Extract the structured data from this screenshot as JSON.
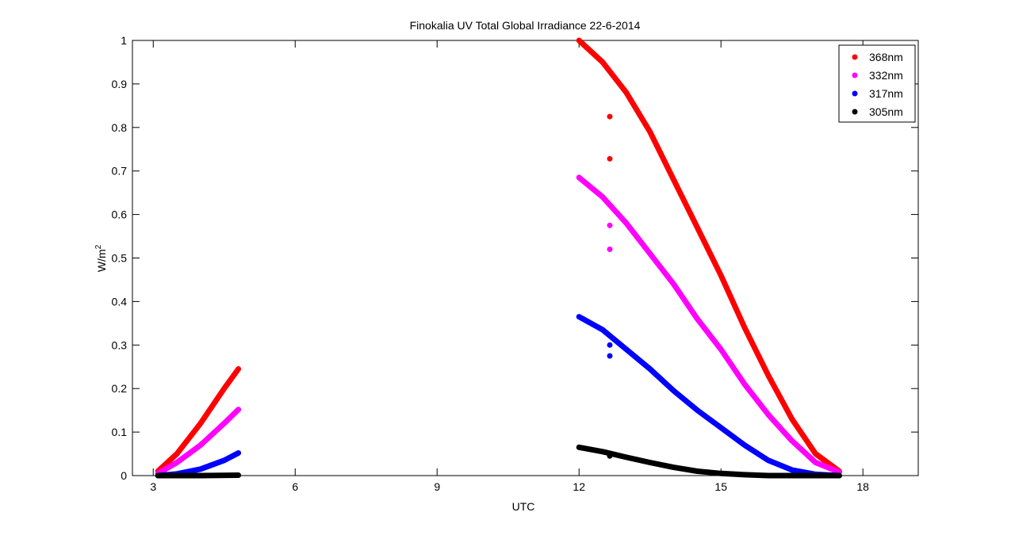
{
  "chart_data": {
    "type": "scatter",
    "title": "Finokalia UV Total Global Irradiance 22-6-2014",
    "xlabel": "UTC",
    "ylabel": "W/m",
    "ylabel_sup": "2",
    "xlim": [
      2.56,
      19.17
    ],
    "ylim": [
      0,
      1
    ],
    "xticks": [
      3,
      6,
      9,
      12,
      15,
      18
    ],
    "xtick_labels": [
      "3",
      "6",
      "9",
      "12",
      "15",
      "18"
    ],
    "yticks": [
      0,
      0.1,
      0.2,
      0.3,
      0.4,
      0.5,
      0.6,
      0.7,
      0.8,
      0.9,
      1
    ],
    "ytick_labels": [
      "0",
      "0.1",
      "0.2",
      "0.3",
      "0.4",
      "0.5",
      "0.6",
      "0.7",
      "0.8",
      "0.9",
      "1"
    ],
    "grid": false,
    "legend_position": "top-right",
    "series": [
      {
        "name": "368nm",
        "color": "#ff0000",
        "segments": [
          [
            [
              3.1,
              0.01
            ],
            [
              3.5,
              0.05
            ],
            [
              4.0,
              0.12
            ],
            [
              4.5,
              0.2
            ],
            [
              4.8,
              0.245
            ]
          ],
          [
            [
              12,
              1.0
            ],
            [
              12.5,
              0.95
            ],
            [
              13,
              0.88
            ],
            [
              13.5,
              0.79
            ],
            [
              14,
              0.68
            ],
            [
              14.5,
              0.57
            ],
            [
              15,
              0.46
            ],
            [
              15.5,
              0.34
            ],
            [
              16,
              0.23
            ],
            [
              16.5,
              0.13
            ],
            [
              17,
              0.05
            ],
            [
              17.5,
              0.01
            ]
          ]
        ],
        "outliers": [
          [
            12.65,
            0.825
          ],
          [
            12.65,
            0.728
          ]
        ]
      },
      {
        "name": "332nm",
        "color": "#ff00ff",
        "segments": [
          [
            [
              3.1,
              0.005
            ],
            [
              3.5,
              0.03
            ],
            [
              4.0,
              0.07
            ],
            [
              4.5,
              0.12
            ],
            [
              4.8,
              0.152
            ]
          ],
          [
            [
              12,
              0.685
            ],
            [
              12.5,
              0.64
            ],
            [
              13,
              0.58
            ],
            [
              13.5,
              0.51
            ],
            [
              14,
              0.44
            ],
            [
              14.5,
              0.36
            ],
            [
              15,
              0.29
            ],
            [
              15.5,
              0.21
            ],
            [
              16,
              0.14
            ],
            [
              16.5,
              0.08
            ],
            [
              17,
              0.03
            ],
            [
              17.5,
              0.008
            ]
          ]
        ],
        "outliers": [
          [
            12.65,
            0.575
          ],
          [
            12.65,
            0.52
          ]
        ]
      },
      {
        "name": "317nm",
        "color": "#0000ff",
        "segments": [
          [
            [
              3.1,
              0.0
            ],
            [
              3.5,
              0.004
            ],
            [
              4.0,
              0.015
            ],
            [
              4.5,
              0.035
            ],
            [
              4.8,
              0.052
            ]
          ],
          [
            [
              12,
              0.365
            ],
            [
              12.5,
              0.335
            ],
            [
              13,
              0.29
            ],
            [
              13.5,
              0.245
            ],
            [
              14,
              0.195
            ],
            [
              14.5,
              0.15
            ],
            [
              15,
              0.11
            ],
            [
              15.5,
              0.07
            ],
            [
              16,
              0.035
            ],
            [
              16.5,
              0.013
            ],
            [
              17,
              0.003
            ],
            [
              17.5,
              0.0
            ]
          ]
        ],
        "outliers": [
          [
            12.65,
            0.3
          ],
          [
            12.65,
            0.275
          ]
        ]
      },
      {
        "name": "305nm",
        "color": "#000000",
        "segments": [
          [
            [
              3.1,
              0.0
            ],
            [
              4.0,
              0.0
            ],
            [
              4.8,
              0.001
            ]
          ],
          [
            [
              12,
              0.065
            ],
            [
              12.5,
              0.055
            ],
            [
              13,
              0.042
            ],
            [
              13.5,
              0.03
            ],
            [
              14,
              0.019
            ],
            [
              14.5,
              0.01
            ],
            [
              15,
              0.005
            ],
            [
              15.5,
              0.002
            ],
            [
              16,
              0.0
            ],
            [
              17.5,
              0.0
            ]
          ]
        ],
        "outliers": [
          [
            12.65,
            0.045
          ]
        ]
      }
    ]
  }
}
